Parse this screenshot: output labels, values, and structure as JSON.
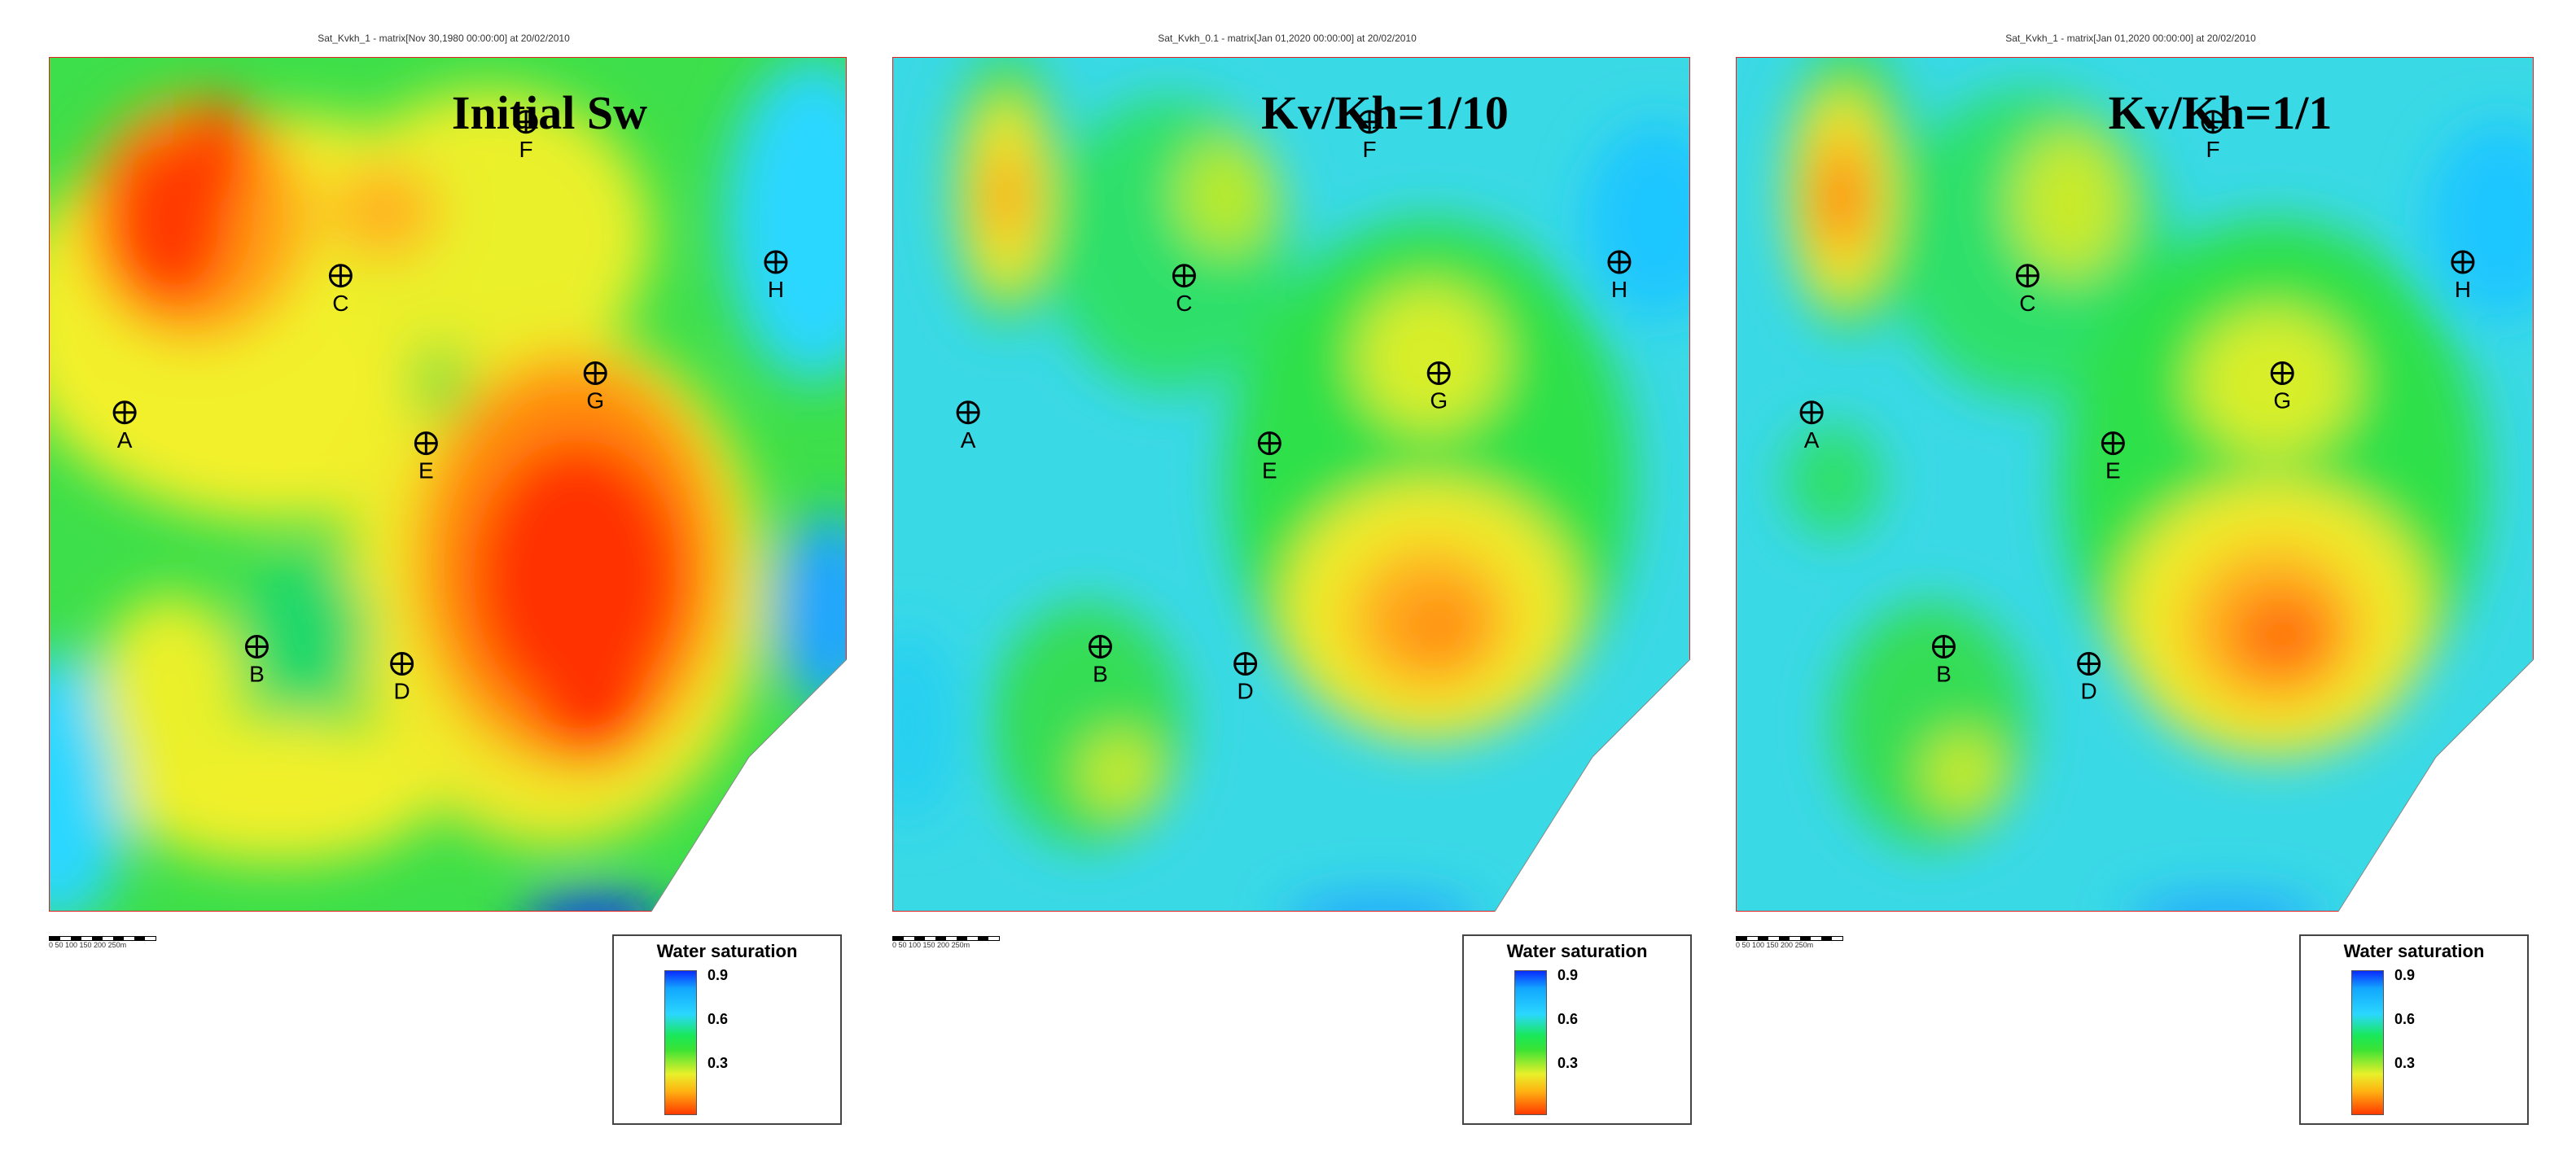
{
  "panels": [
    {
      "header": "Sat_Kvkh_1 - matrix[Nov 30,1980 00:00:00] at 20/02/2010",
      "title": "Initial Sw",
      "variant": "initial"
    },
    {
      "header": "Sat_Kvkh_0.1 - matrix[Jan 01,2020 00:00:00] at 20/02/2010",
      "title": "Kv/Kh=1/10",
      "variant": "k10"
    },
    {
      "header": "Sat_Kvkh_1 - matrix[Jan 01,2020 00:00:00] at 20/02/2010",
      "title": "Kv/Kh=1/1",
      "variant": "k1"
    }
  ],
  "wells": [
    "A",
    "B",
    "C",
    "D",
    "E",
    "F",
    "G",
    "H"
  ],
  "legend": {
    "title": "Water saturation",
    "ticks": [
      "0.9",
      "0.6",
      "0.3"
    ]
  },
  "colors": {
    "deep_blue": "#0a2bff",
    "light_blue": "#2ad7ff",
    "green": "#1fe33a",
    "yellow": "#f0f02a",
    "orange": "#ffa018",
    "red": "#ff3300",
    "frame_red": "#e02020"
  },
  "scale": {
    "labels": "0  50 100 150 200 250m"
  }
}
